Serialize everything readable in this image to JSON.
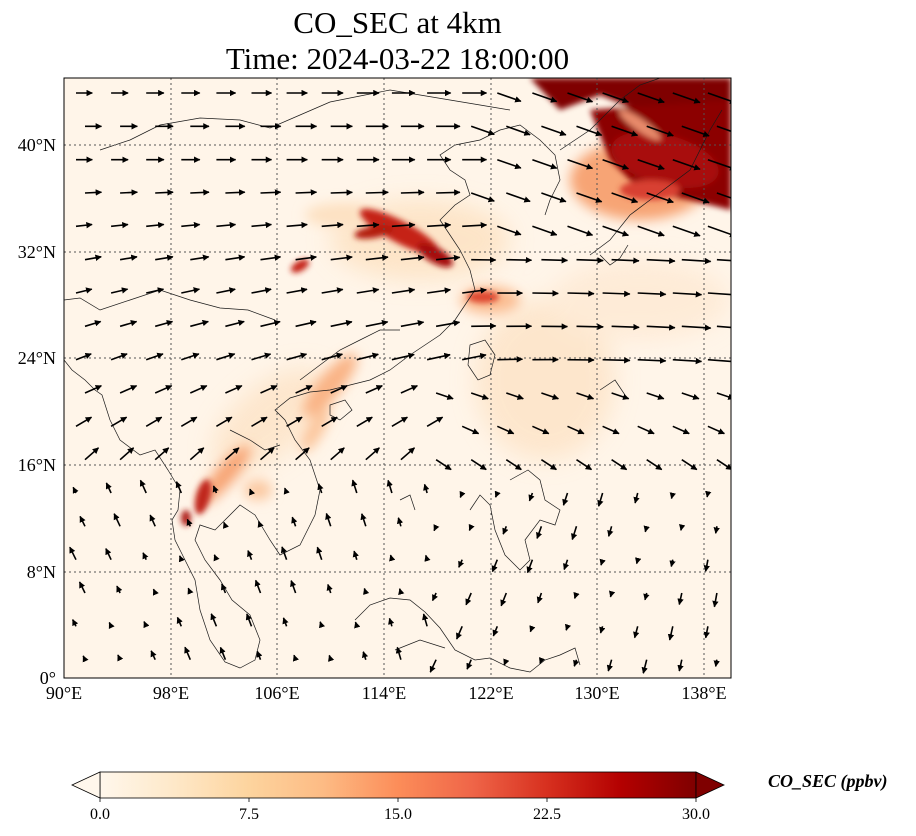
{
  "title": {
    "line1": "CO_SEC at 4km",
    "line2": "Time: 2024-03-22 18:00:00"
  },
  "map": {
    "projection": "PlateCarree",
    "lon_range": [
      90,
      139.5
    ],
    "lat_range": [
      0,
      45
    ],
    "gridlines": "dotted",
    "coastlines": true,
    "borders": true,
    "lat_ticks": [
      {
        "value": 0,
        "label": "0°"
      },
      {
        "value": 8,
        "label": "8°N"
      },
      {
        "value": 16,
        "label": "16°N"
      },
      {
        "value": 24,
        "label": "24°N"
      },
      {
        "value": 32,
        "label": "32°N"
      },
      {
        "value": 40,
        "label": "40°N"
      }
    ],
    "lon_ticks": [
      {
        "value": 90,
        "label": "90°E"
      },
      {
        "value": 98,
        "label": "98°E"
      },
      {
        "value": 106,
        "label": "106°E"
      },
      {
        "value": 114,
        "label": "114°E"
      },
      {
        "value": 122,
        "label": "122°E"
      },
      {
        "value": 130,
        "label": "130°E"
      },
      {
        "value": 138,
        "label": "138°E"
      }
    ]
  },
  "colorbar": {
    "colormap": "OrRd",
    "min": 0.0,
    "max": 30.0,
    "extend": "both",
    "orientation": "horizontal",
    "ticks": [
      "0.0",
      "7.5",
      "15.0",
      "22.5",
      "30.0"
    ],
    "label": "CO_SEC (ppbv)",
    "colors": [
      "#fff7ec",
      "#fee8c8",
      "#fdd49e",
      "#fdbb84",
      "#fc8d59",
      "#ef6548",
      "#d7301f",
      "#b30000",
      "#7f0000"
    ]
  },
  "wind_vectors": {
    "color": "#000000"
  }
}
